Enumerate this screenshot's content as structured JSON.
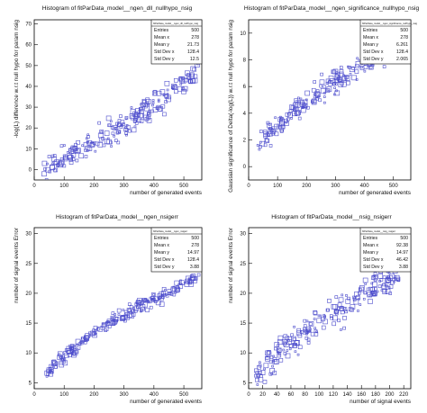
{
  "chart_data": [
    {
      "type": "scatter",
      "title": "Histogram of fitParData_model__ngen_dll_nullhypo_nsig",
      "xlabel": "number of generated events",
      "ylabel": "-log(L) difference w.r.t null hypo for param nsig",
      "xlim": [
        0,
        560
      ],
      "ylim": [
        -5,
        72
      ],
      "xticks": [
        0,
        100,
        200,
        300,
        400,
        500
      ],
      "yticks": [
        0,
        10,
        20,
        30,
        40,
        50,
        60,
        70
      ],
      "grid": false,
      "stats": {
        "name": "fitParData_model__ngen_dll_nullhypo_nsig",
        "position": "top-right",
        "rows": [
          [
            "Entries",
            "500"
          ],
          [
            "Mean x",
            "278"
          ],
          [
            "Mean y",
            "21.73"
          ],
          [
            "Std Dev x",
            "128.4"
          ],
          [
            "Std Dev y",
            "12.5"
          ]
        ]
      },
      "trend": [
        [
          30,
          1
        ],
        [
          150,
          9
        ],
        [
          300,
          22
        ],
        [
          450,
          36
        ],
        [
          550,
          48
        ]
      ],
      "spread": 5.5
    },
    {
      "type": "scatter",
      "title": "Histogram of fitParData_model__ngen_significance_nullhypo_nsig",
      "xlabel": "number of generated events",
      "ylabel": "Gaussian significance of Delta(-log(L)) w.r.t null hypo for param nsig",
      "xlim": [
        0,
        560
      ],
      "ylim": [
        -1,
        11
      ],
      "xticks": [
        0,
        100,
        200,
        300,
        400,
        500
      ],
      "yticks": [
        0,
        2,
        4,
        6,
        8,
        10
      ],
      "grid": false,
      "stats": {
        "name": "fitParData_model__ngen_significance_nullhypo_nsig",
        "position": "top-right",
        "rows": [
          [
            "Entries",
            "500"
          ],
          [
            "Mean x",
            "278"
          ],
          [
            "Mean y",
            "6.261"
          ],
          [
            "Std Dev x",
            "128.4"
          ],
          [
            "Std Dev y",
            "2.065"
          ]
        ]
      },
      "trend": [
        [
          30,
          1.5
        ],
        [
          150,
          4.0
        ],
        [
          300,
          6.4
        ],
        [
          450,
          8.2
        ],
        [
          550,
          9.2
        ]
      ],
      "spread": 0.75
    },
    {
      "type": "scatter",
      "title": "Histogram of fitParData_model__ngen_nsigerr",
      "xlabel": "number of generated events",
      "ylabel": "number of signal events Error",
      "xlim": [
        0,
        560
      ],
      "ylim": [
        4,
        31
      ],
      "xticks": [
        0,
        100,
        200,
        300,
        400,
        500
      ],
      "yticks": [
        5,
        10,
        15,
        20,
        25,
        30
      ],
      "grid": false,
      "stats": {
        "name": "fitParData_model__ngen_nsigerr",
        "position": "top-right",
        "rows": [
          [
            "Entries",
            "500"
          ],
          [
            "Mean x",
            "278"
          ],
          [
            "Mean y",
            "14.97"
          ],
          [
            "Std Dev x",
            "128.4"
          ],
          [
            "Std Dev y",
            "3.88"
          ]
        ]
      },
      "trend": [
        [
          40,
          6.5
        ],
        [
          100,
          9.5
        ],
        [
          200,
          13.5
        ],
        [
          300,
          16.5
        ],
        [
          400,
          19.0
        ],
        [
          500,
          21.5
        ],
        [
          550,
          23.0
        ]
      ],
      "spread": 0.9
    },
    {
      "type": "scatter",
      "title": "Histogram of fitParData_model__nsig_nsigerr",
      "xlabel": "number of signal events",
      "ylabel": "number of signal events Error",
      "xlim": [
        0,
        230
      ],
      "ylim": [
        4,
        31
      ],
      "xticks": [
        0,
        20,
        40,
        60,
        80,
        100,
        120,
        140,
        160,
        180,
        200,
        220
      ],
      "yticks": [
        5,
        10,
        15,
        20,
        25,
        30
      ],
      "grid": false,
      "stats": {
        "name": "fitParData_model__nsig_nsigerr",
        "position": "top-right",
        "rows": [
          [
            "Entries",
            "500"
          ],
          [
            "Mean x",
            "92.38"
          ],
          [
            "Mean y",
            "14.97"
          ],
          [
            "Std Dev x",
            "46.42"
          ],
          [
            "Std Dev y",
            "3.88"
          ]
        ]
      },
      "trend": [
        [
          10,
          6.5
        ],
        [
          40,
          9.5
        ],
        [
          90,
          14.5
        ],
        [
          150,
          19.0
        ],
        [
          190,
          22.0
        ],
        [
          215,
          23.0
        ]
      ],
      "spread": 2.0
    }
  ]
}
